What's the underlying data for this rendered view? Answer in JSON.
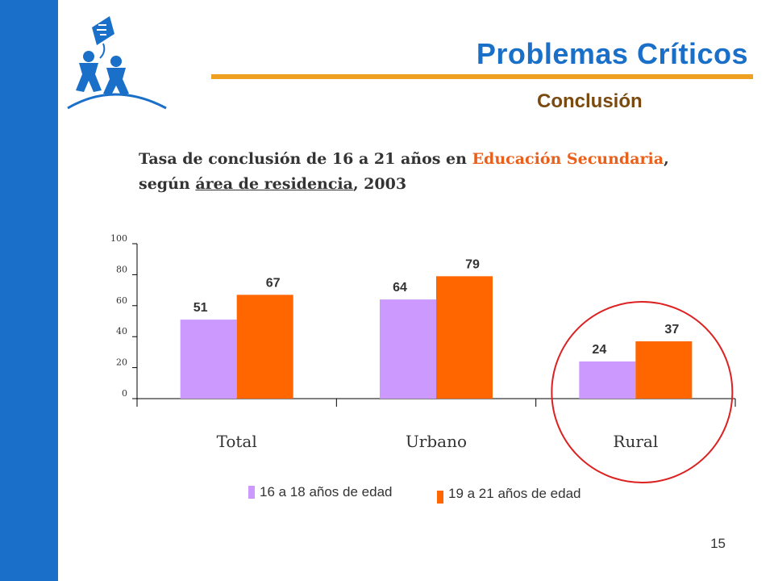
{
  "slide": {
    "title": "Problemas Críticos",
    "subtitle": "Conclusión",
    "page_number": "15",
    "logo_icon": "children-kite-logo-icon"
  },
  "heading": {
    "part1": "Tasa de conclusión de 16 a 21 años en ",
    "highlight": "Educación Secundaria",
    "part2": ",",
    "part3": "según ",
    "underlined": "área de residencia",
    "part4": ", 2003"
  },
  "colors": {
    "sidebar": "#1a6fc8",
    "accent_rule": "#f0a020",
    "series_1": "#cc99ff",
    "series_2": "#ff6600",
    "highlight_circle": "#dd2020"
  },
  "chart_data": {
    "type": "bar",
    "categories": [
      "Total",
      "Urbano",
      "Rural"
    ],
    "series": [
      {
        "name": "16 a 18 años de edad",
        "values": [
          51,
          64,
          24
        ]
      },
      {
        "name": "19 a 21 años de edad",
        "values": [
          67,
          79,
          37
        ]
      }
    ],
    "yticks": [
      "0",
      "20",
      "40",
      "60",
      "80",
      "100"
    ],
    "ylim": [
      0,
      100
    ],
    "grid": false,
    "legend_position": "bottom",
    "highlighted_category": "Rural"
  }
}
